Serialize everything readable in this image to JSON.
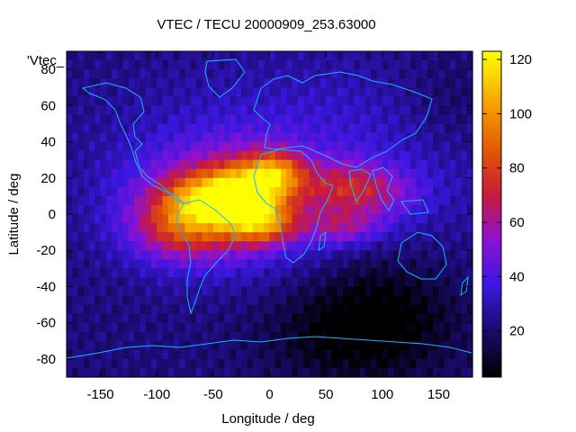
{
  "chart_data": {
    "type": "heatmap",
    "title": "VTEC / TECU 20000909_253.63000",
    "xlabel": "Longitude / deg",
    "ylabel": "Latitude / deg",
    "key_label": "'Vtec_",
    "xlim": [
      -180,
      180
    ],
    "ylim": [
      -90,
      90
    ],
    "x_ticks": [
      -150,
      -100,
      -50,
      0,
      50,
      100,
      150
    ],
    "y_ticks": [
      -80,
      -60,
      -40,
      -20,
      0,
      20,
      40,
      60,
      80
    ],
    "colorbar": {
      "min": 3,
      "max": 123,
      "ticks": [
        20,
        40,
        60,
        80,
        100,
        120
      ],
      "palette": "black-blue-purple-red-orange-yellow"
    },
    "features": [
      {
        "name": "equatorial-crest-atlantic",
        "lon": -25,
        "lat": 8,
        "peak": 120
      },
      {
        "name": "west-africa-max",
        "lon": 5,
        "lat": 22,
        "peak": 115
      },
      {
        "name": "southern-anomaly-crest",
        "lon": -5,
        "lat": -5,
        "peak": 108
      },
      {
        "name": "south-america-band",
        "lon": -70,
        "lat": -10,
        "peak": 75
      },
      {
        "name": "indian-ocean-tail",
        "lon": 70,
        "lat": 12,
        "peak": 62
      },
      {
        "name": "antarctic-night-minimum",
        "lon": 70,
        "lat": -65,
        "peak": 3
      }
    ]
  }
}
